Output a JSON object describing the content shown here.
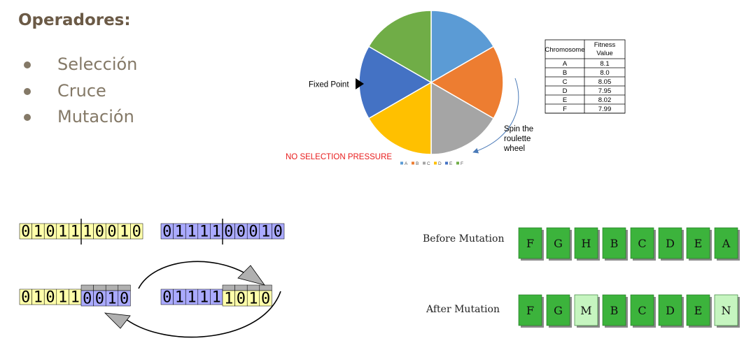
{
  "heading": "Operadores:",
  "operators": [
    "Selección",
    "Cruce",
    "Mutación"
  ],
  "roulette": {
    "fixed_point_label": "Fixed Point",
    "spin_label_lines": [
      "Spin the",
      "roulette",
      "wheel"
    ],
    "pressure_label": "NO SELECTION PRESSURE",
    "slices": [
      {
        "name": "A",
        "color": "#5b9bd5"
      },
      {
        "name": "B",
        "color": "#ed7d31"
      },
      {
        "name": "C",
        "color": "#a5a5a5"
      },
      {
        "name": "D",
        "color": "#ffc000"
      },
      {
        "name": "E",
        "color": "#4472c4"
      },
      {
        "name": "F",
        "color": "#70ad47"
      }
    ]
  },
  "fitness_table": {
    "headers": [
      "Chromosome",
      "Fitness Value"
    ],
    "rows": [
      [
        "A",
        "8.1"
      ],
      [
        "B",
        "8.0"
      ],
      [
        "C",
        "8.05"
      ],
      [
        "D",
        "7.95"
      ],
      [
        "E",
        "8.02"
      ],
      [
        "F",
        "7.99"
      ]
    ]
  },
  "crossover": {
    "parent1": "0101110010",
    "parent2": "0111100010",
    "child1_head": "01011",
    "child1_tail": "0010",
    "child2_head": "01111",
    "child2_tail": "1010",
    "colors": {
      "yellow": "#ffffaa",
      "blue": "#aaaaff",
      "gray": "#b0b0b0"
    }
  },
  "mutation": {
    "before_label": "Before Mutation",
    "after_label": "After Mutation",
    "before_genes": [
      "F",
      "G",
      "H",
      "B",
      "C",
      "D",
      "E",
      "A"
    ],
    "after_genes": [
      "F",
      "G",
      "M",
      "B",
      "C",
      "D",
      "E",
      "N"
    ],
    "mutated_after_indices": [
      2,
      7
    ],
    "colors": {
      "normal": "#3cb33c",
      "mutated": "#c6f5c0"
    }
  }
}
